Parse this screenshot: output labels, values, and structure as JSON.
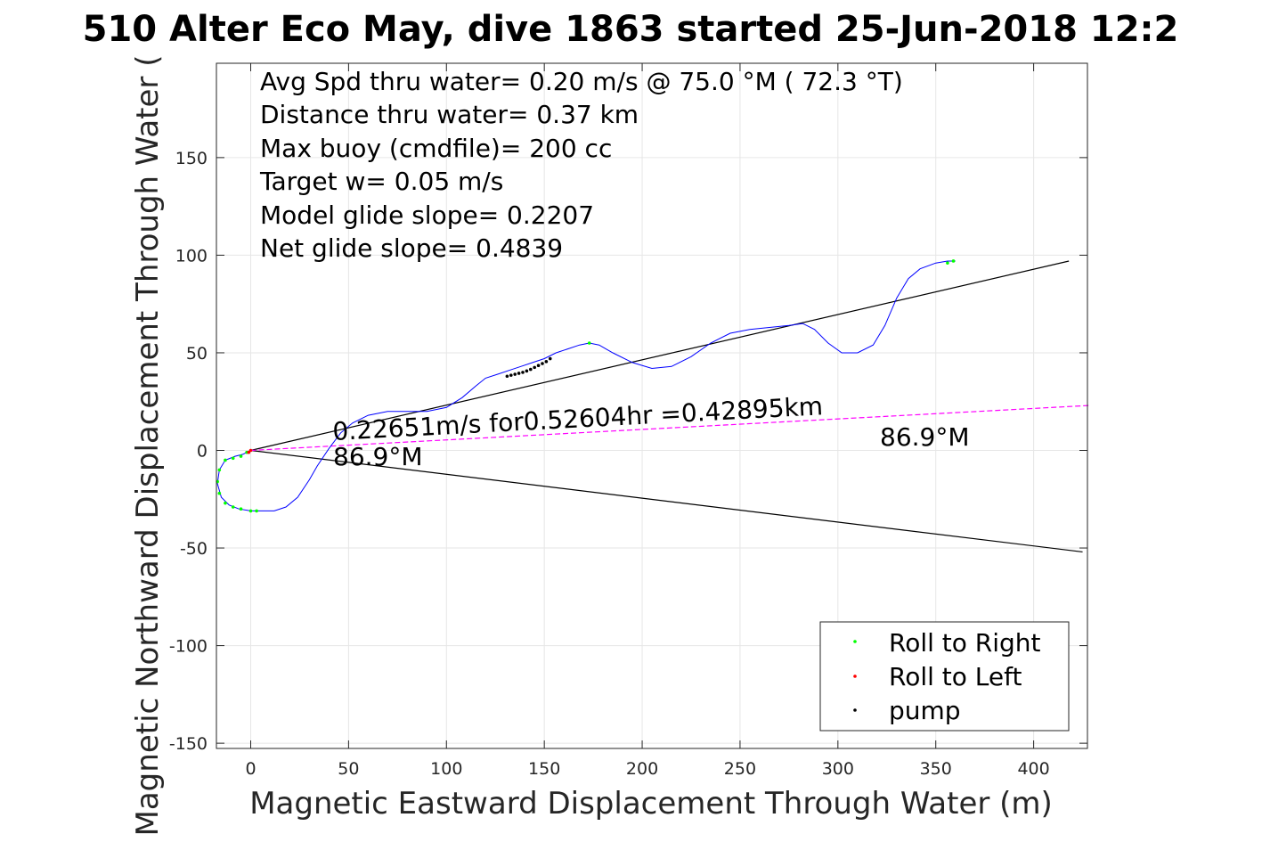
{
  "chart_data": {
    "type": "scatter",
    "title": "510 Alter Eco May, dive 1863 started 25-Jun-2018 12:2",
    "xlabel": "Magnetic Eastward Displacement Through Water (m)",
    "ylabel": "Magnetic Northward Displacement Through Water (",
    "xlim": [
      -17,
      428
    ],
    "ylim": [
      -153,
      198
    ],
    "xticks": [
      0,
      50,
      100,
      150,
      200,
      250,
      300,
      350,
      400
    ],
    "yticks": [
      -150,
      -100,
      -50,
      0,
      50,
      100,
      150
    ],
    "grid": true,
    "legend_position": "bottom-right",
    "info_lines": [
      "Avg Spd thru water=  0.20 m/s @  75.0 °M ( 72.3 °T)",
      "Distance thru water=  0.37 km",
      "Max buoy (cmdfile)= 200 cc",
      "Target w= 0.05 m/s",
      "Model glide slope= 0.2207",
      "Net glide slope= 0.4839"
    ],
    "annotations": {
      "speed_text": "0.22651m/s for0.52604hr =0.42895km",
      "heading_start": "86.9°M",
      "heading_end": "86.9°M"
    },
    "series": [
      {
        "name": "track",
        "color": "#0000ff",
        "x": [
          0,
          -4,
          -8,
          -13,
          -16,
          -17,
          -15,
          -11,
          -6,
          0,
          6,
          12,
          18,
          24,
          30,
          34,
          40,
          46,
          52,
          60,
          70,
          80,
          90,
          100,
          108,
          115,
          120,
          126,
          132,
          138,
          144,
          150,
          156,
          162,
          168,
          173,
          178,
          185,
          195,
          205,
          215,
          225,
          235,
          245,
          255,
          265,
          275,
          282,
          288,
          295,
          302,
          310,
          318,
          324,
          330,
          336,
          342,
          350,
          356,
          360
        ],
        "y": [
          0,
          -2,
          -3,
          -5,
          -10,
          -17,
          -24,
          -28,
          -30,
          -31,
          -31,
          -31,
          -29,
          -24,
          -15,
          -8,
          1,
          9,
          14,
          18,
          20,
          20,
          20,
          22,
          27,
          33,
          37,
          39,
          41,
          43,
          45,
          47,
          50,
          52,
          54,
          55,
          54,
          50,
          45,
          42,
          43,
          48,
          55,
          60,
          62,
          63,
          64,
          65,
          62,
          55,
          50,
          50,
          54,
          64,
          78,
          88,
          93,
          96,
          97,
          97
        ]
      },
      {
        "name": "Roll to Right",
        "color": "#00ff00",
        "x": [
          -2,
          -5,
          -9,
          -13,
          -16,
          -17,
          -16,
          -13,
          -9,
          -5,
          0,
          3,
          173,
          356,
          359
        ],
        "y": [
          -1,
          -3,
          -4,
          -5,
          -10,
          -16,
          -22,
          -27,
          -29,
          -30,
          -31,
          -31,
          55,
          96,
          97
        ]
      },
      {
        "name": "Roll to Left",
        "color": "#ff0000",
        "x": [
          0,
          -1
        ],
        "y": [
          0,
          -1
        ]
      },
      {
        "name": "pump",
        "color": "#000000",
        "x": [
          131,
          133,
          135,
          137,
          139,
          141,
          143,
          145,
          147,
          149,
          151,
          153
        ],
        "y": [
          38,
          38.5,
          39,
          39.5,
          40,
          40.7,
          41.5,
          42.5,
          43.5,
          44.5,
          45.5,
          47
        ]
      }
    ],
    "lines": [
      {
        "name": "upper-bound-line",
        "color": "#000000",
        "x": [
          0,
          418
        ],
        "y": [
          0,
          97
        ]
      },
      {
        "name": "lower-bound-line",
        "color": "#000000",
        "x": [
          0,
          425
        ],
        "y": [
          0,
          -52
        ]
      },
      {
        "name": "net-heading-line",
        "color": "#ff00ff",
        "x": [
          0,
          428
        ],
        "y": [
          0,
          23
        ]
      }
    ],
    "legend": [
      {
        "label": "Roll to Right",
        "color": "#00ff00"
      },
      {
        "label": "Roll to Left",
        "color": "#ff0000"
      },
      {
        "label": "pump",
        "color": "#000000"
      }
    ]
  }
}
